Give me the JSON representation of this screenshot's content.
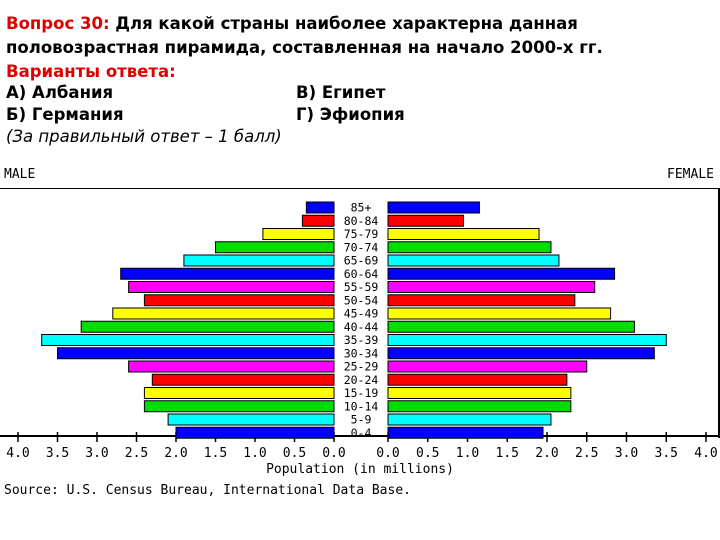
{
  "question": {
    "number_label": "Вопрос 30:",
    "line1_rest": " Для какой страны наиболее характерна данная",
    "line2": "половозрастная пирамида, составленная на начало 2000-х гг.",
    "answers_header": "Варианты ответа:",
    "option_a": "А) Албания",
    "option_b": "Б) Германия",
    "option_v": "В) Египет",
    "option_g": "Г) Эфиопия",
    "note": "(За правильный ответ – 1 балл)"
  },
  "chart_data": {
    "type": "bar",
    "orientation": "horizontal-pyramid",
    "title": "",
    "left_label": "MALE",
    "right_label": "FEMALE",
    "xlabel": "Population (in millions)",
    "source": "Source: U.S. Census Bureau, International Data Base.",
    "xlim": [
      0,
      4.0
    ],
    "x_ticks_left": [
      "4.0",
      "3.5",
      "3.0",
      "2.5",
      "2.0",
      "1.5",
      "1.0",
      "0.5",
      "0.0"
    ],
    "x_ticks_right": [
      "0.0",
      "0.5",
      "1.0",
      "1.5",
      "2.0",
      "2.5",
      "3.0",
      "3.5",
      "4.0"
    ],
    "categories": [
      "85+",
      "80-84",
      "75-79",
      "70-74",
      "65-69",
      "60-64",
      "55-59",
      "50-54",
      "45-49",
      "40-44",
      "35-39",
      "30-34",
      "25-29",
      "20-24",
      "15-19",
      "10-14",
      "5-9",
      "0-4"
    ],
    "bar_colors": [
      "#0000ff",
      "#ff0000",
      "#ffff00",
      "#00dd00",
      "#00ffff",
      "#0000ff",
      "#ff00ff",
      "#ff0000",
      "#ffff00",
      "#00dd00",
      "#00ffff",
      "#0000ff",
      "#ff00ff",
      "#ff0000",
      "#ffff00",
      "#00dd00",
      "#00ffff",
      "#0000ff"
    ],
    "series": [
      {
        "name": "MALE",
        "values": [
          0.35,
          0.4,
          0.9,
          1.5,
          1.9,
          2.7,
          2.6,
          2.4,
          2.8,
          3.2,
          3.7,
          3.5,
          2.6,
          2.3,
          2.4,
          2.4,
          2.1,
          2.0
        ]
      },
      {
        "name": "FEMALE",
        "values": [
          1.15,
          0.95,
          1.9,
          2.05,
          2.15,
          2.85,
          2.6,
          2.35,
          2.8,
          3.1,
          3.5,
          3.35,
          2.5,
          2.25,
          2.3,
          2.3,
          2.05,
          1.95
        ]
      }
    ]
  }
}
